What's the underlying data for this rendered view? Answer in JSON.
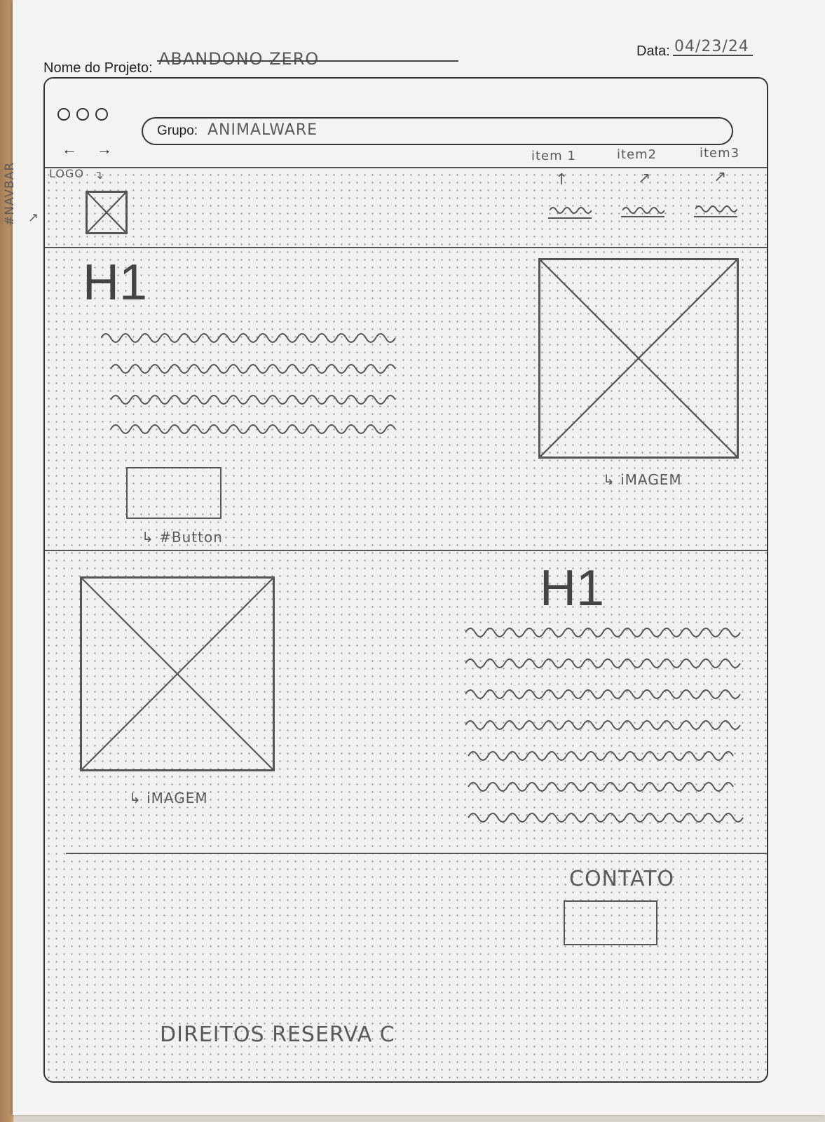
{
  "header": {
    "project_label": "Nome do Projeto:",
    "project_value": "ABANDONO ZERO",
    "date_label": "Data:",
    "date_value": "04/23/24"
  },
  "browser": {
    "group_label": "Grupo:",
    "group_value": "ANIMALWARE"
  },
  "annotations": {
    "logo": "LOGO",
    "navbar": "#NAVBAR",
    "nav_items": [
      "item 1",
      "item2",
      "item3"
    ],
    "hero_image": "↳ iMAGEM",
    "hero_button": "↳ #Button",
    "about_image": "↳ iMAGEM",
    "contact": "CONTATO",
    "footer": "DIREITOS RESERVA C"
  },
  "hero": {
    "heading": "H1"
  },
  "about": {
    "heading": "H1"
  },
  "icons": {
    "back": "arrow-left-icon",
    "forward": "arrow-right-icon"
  }
}
